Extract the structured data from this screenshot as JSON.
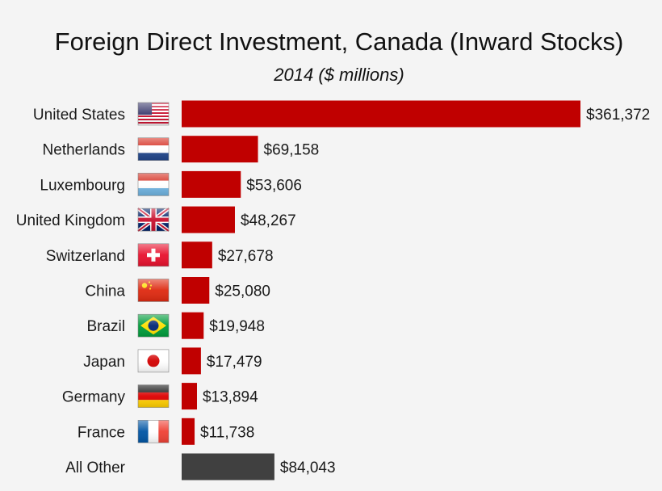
{
  "chart_data": {
    "type": "bar",
    "orientation": "horizontal",
    "title": "Foreign Direct Investment, Canada (Inward Stocks)",
    "subtitle": "2014 ($ millions)",
    "categories": [
      "United States",
      "Netherlands",
      "Luxembourg",
      "United Kingdom",
      "Switzerland",
      "China",
      "Brazil",
      "Japan",
      "Germany",
      "France",
      "All Other"
    ],
    "values": [
      361372,
      69158,
      53606,
      48267,
      27678,
      25080,
      19948,
      17479,
      13894,
      11738,
      84043
    ],
    "value_labels": [
      "$361,372",
      "$69,158",
      "$53,606",
      "$48,267",
      "$27,678",
      "$25,080",
      "$19,948",
      "$17,479",
      "$13,894",
      "$11,738",
      "$84,043"
    ],
    "flags": [
      "us-flag-icon",
      "netherlands-flag-icon",
      "luxembourg-flag-icon",
      "uk-flag-icon",
      "switzerland-flag-icon",
      "china-flag-icon",
      "brazil-flag-icon",
      "japan-flag-icon",
      "germany-flag-icon",
      "france-flag-icon",
      ""
    ],
    "bar_colors": [
      "#c00000",
      "#c00000",
      "#c00000",
      "#c00000",
      "#c00000",
      "#c00000",
      "#c00000",
      "#c00000",
      "#c00000",
      "#c00000",
      "#404040"
    ],
    "grid": false,
    "legend": "none"
  }
}
